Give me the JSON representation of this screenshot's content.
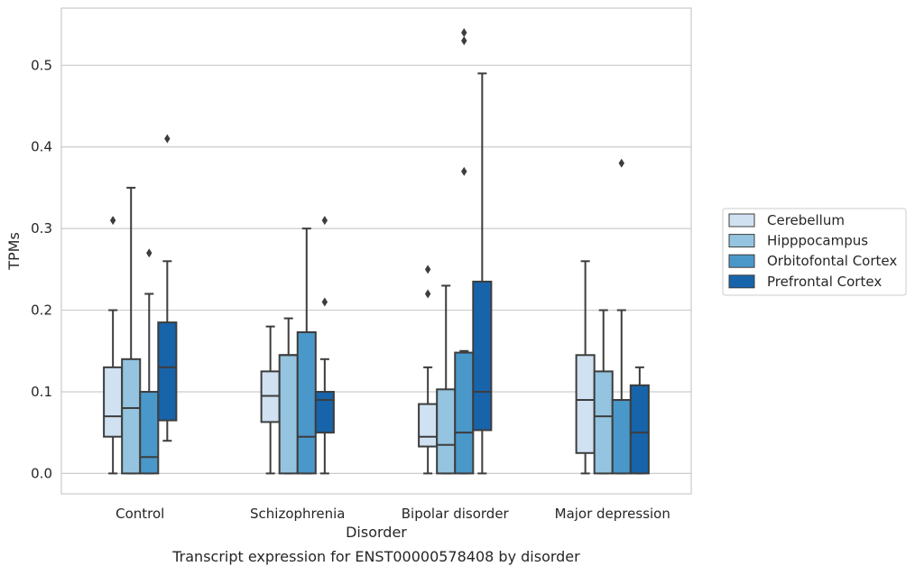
{
  "caption": "Transcript expression for ENST00000578408 by disorder",
  "chart_data": {
    "type": "box",
    "title": "",
    "xlabel": "Disorder",
    "ylabel": "TPMs",
    "ylim": [
      -0.025,
      0.57
    ],
    "yticks": [
      0.0,
      0.1,
      0.2,
      0.3,
      0.4,
      0.5
    ],
    "ytick_labels": [
      "0.0",
      "0.1",
      "0.2",
      "0.3",
      "0.4",
      "0.5"
    ],
    "grid": "horizontal",
    "legend_position": "right",
    "categories": [
      "Control",
      "Schizophrenia",
      "Bipolar disorder",
      "Major depression"
    ],
    "series": [
      {
        "name": "Cerebellum",
        "color": "#d0e1f2",
        "boxes": [
          {
            "whislo": 0.0,
            "q1": 0.045,
            "med": 0.07,
            "q3": 0.13,
            "whishi": 0.2,
            "fliers": [
              0.31
            ]
          },
          {
            "whislo": 0.0,
            "q1": 0.063,
            "med": 0.095,
            "q3": 0.125,
            "whishi": 0.18,
            "fliers": []
          },
          {
            "whislo": 0.0,
            "q1": 0.033,
            "med": 0.045,
            "q3": 0.085,
            "whishi": 0.13,
            "fliers": [
              0.22,
              0.25
            ]
          },
          {
            "whislo": 0.0,
            "q1": 0.025,
            "med": 0.09,
            "q3": 0.145,
            "whishi": 0.26,
            "fliers": []
          }
        ]
      },
      {
        "name": "Hipppocampus",
        "color": "#94c4df",
        "boxes": [
          {
            "whislo": 0.0,
            "q1": 0.0,
            "med": 0.08,
            "q3": 0.14,
            "whishi": 0.35,
            "fliers": []
          },
          {
            "whislo": 0.0,
            "q1": 0.0,
            "med": 0.145,
            "q3": 0.145,
            "whishi": 0.19,
            "fliers": []
          },
          {
            "whislo": 0.0,
            "q1": 0.0,
            "med": 0.035,
            "q3": 0.103,
            "whishi": 0.23,
            "fliers": []
          },
          {
            "whislo": 0.0,
            "q1": 0.0,
            "med": 0.07,
            "q3": 0.125,
            "whishi": 0.2,
            "fliers": []
          }
        ]
      },
      {
        "name": "Orbitofontal Cortex",
        "color": "#4a98c9",
        "boxes": [
          {
            "whislo": 0.0,
            "q1": 0.0,
            "med": 0.02,
            "q3": 0.1,
            "whishi": 0.22,
            "fliers": [
              0.27
            ]
          },
          {
            "whislo": 0.0,
            "q1": 0.0,
            "med": 0.045,
            "q3": 0.173,
            "whishi": 0.3,
            "fliers": []
          },
          {
            "whislo": 0.0,
            "q1": 0.0,
            "med": 0.05,
            "q3": 0.148,
            "whishi": 0.15,
            "fliers": [
              0.37,
              0.53,
              0.54
            ]
          },
          {
            "whislo": 0.0,
            "q1": 0.0,
            "med": 0.09,
            "q3": 0.09,
            "whishi": 0.2,
            "fliers": [
              0.38
            ]
          }
        ]
      },
      {
        "name": "Prefrontal Cortex",
        "color": "#1764ab",
        "boxes": [
          {
            "whislo": 0.04,
            "q1": 0.065,
            "med": 0.13,
            "q3": 0.185,
            "whishi": 0.26,
            "fliers": [
              0.41
            ]
          },
          {
            "whislo": 0.0,
            "q1": 0.05,
            "med": 0.09,
            "q3": 0.1,
            "whishi": 0.14,
            "fliers": [
              0.21,
              0.31
            ]
          },
          {
            "whislo": 0.0,
            "q1": 0.053,
            "med": 0.1,
            "q3": 0.235,
            "whishi": 0.49,
            "fliers": []
          },
          {
            "whislo": 0.0,
            "q1": 0.0,
            "med": 0.05,
            "q3": 0.108,
            "whishi": 0.13,
            "fliers": []
          }
        ]
      }
    ]
  }
}
